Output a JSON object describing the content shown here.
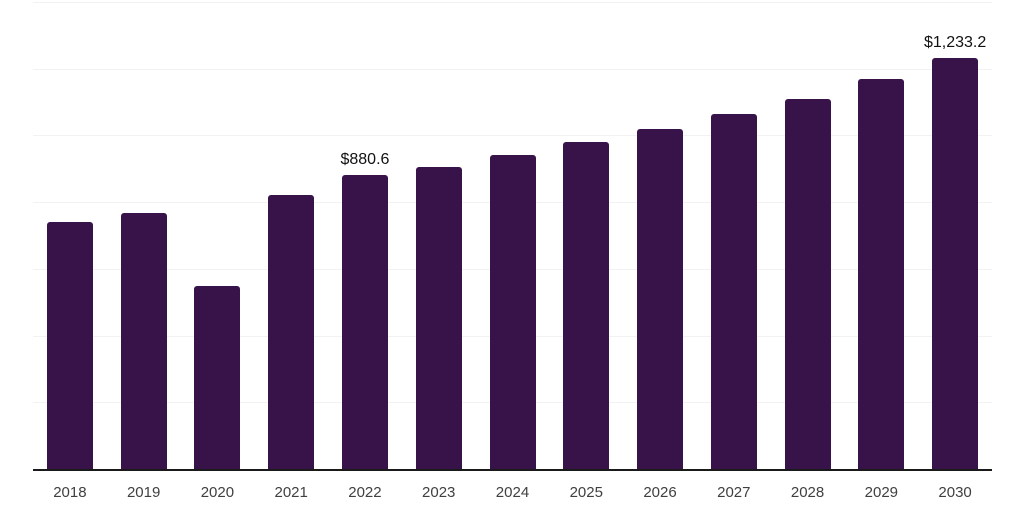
{
  "chart_data": {
    "type": "bar",
    "title": "",
    "xlabel": "",
    "ylabel": "",
    "categories": [
      "2018",
      "2019",
      "2020",
      "2021",
      "2022",
      "2023",
      "2024",
      "2025",
      "2026",
      "2027",
      "2028",
      "2029",
      "2030"
    ],
    "values": [
      742,
      766,
      550,
      821,
      880.6,
      906,
      940,
      979,
      1018,
      1063,
      1110,
      1170,
      1233.2
    ],
    "value_labels": [
      "",
      "",
      "",
      "",
      "$880.6",
      "",
      "",
      "",
      "",
      "",
      "",
      "",
      "$1,233.2"
    ],
    "ylim": [
      0,
      1400
    ],
    "gridline_step": 200,
    "grid": "horizontal-light",
    "y_tick_labels_visible": false,
    "legend_position": "none",
    "colors": {
      "bar": "#371349",
      "axis_line": "#1a1a1a",
      "gridline": "#f2f2f2",
      "x_tick_label": "#404040",
      "data_label": "#111111",
      "background": "#ffffff"
    }
  }
}
